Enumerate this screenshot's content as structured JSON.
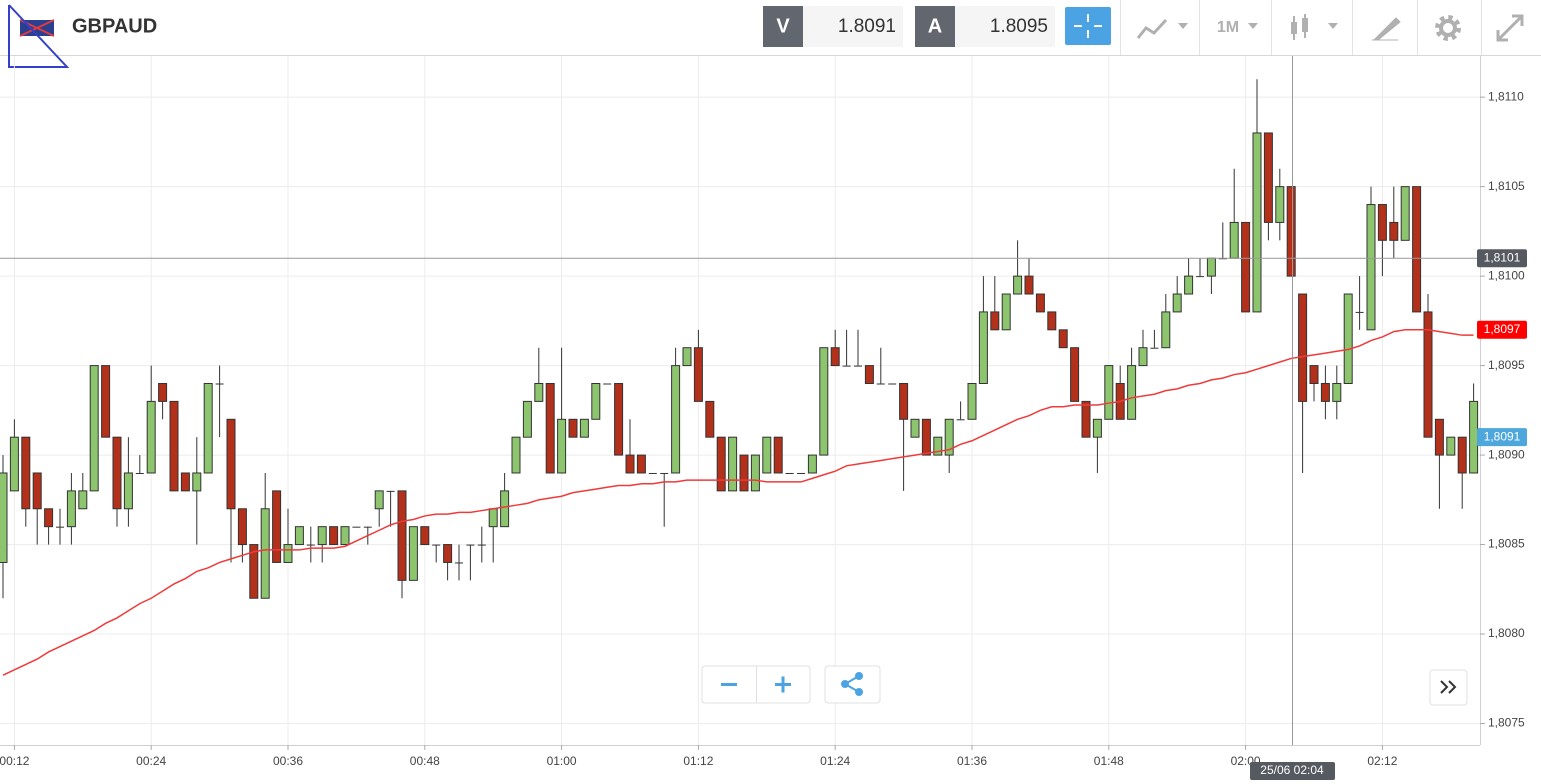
{
  "header": {
    "symbol": "GBPAUD",
    "bid_letter": "V",
    "bid": "1.8091",
    "ask_letter": "A",
    "ask": "1.8095",
    "timeframe": "1M"
  },
  "chart_data": {
    "type": "candlestick",
    "up_color": "#8cc56e",
    "down_color": "#b3301b",
    "categories": [
      null,
      "00:12",
      null,
      null,
      null,
      null,
      null,
      null,
      null,
      null,
      null,
      null,
      null,
      "00:24",
      null,
      null,
      null,
      null,
      null,
      null,
      null,
      null,
      null,
      null,
      null,
      "00:36",
      null,
      null,
      null,
      null,
      null,
      null,
      null,
      null,
      null,
      null,
      null,
      "00:48",
      null,
      null,
      null,
      null,
      null,
      null,
      null,
      null,
      null,
      null,
      null,
      "01:00",
      null,
      null,
      null,
      null,
      null,
      null,
      null,
      null,
      null,
      null,
      null,
      "01:12",
      null,
      null,
      null,
      null,
      null,
      null,
      null,
      null,
      null,
      null,
      null,
      "01:24",
      null,
      null,
      null,
      null,
      null,
      null,
      null,
      null,
      null,
      null,
      null,
      "01:36",
      null,
      null,
      null,
      null,
      null,
      null,
      null,
      null,
      null,
      null,
      null,
      "01:48",
      null,
      null,
      null,
      null,
      null,
      null,
      null,
      null,
      null,
      null,
      null,
      "02:00",
      null,
      null,
      null,
      null,
      null,
      null,
      null,
      null,
      null,
      null,
      null,
      "02:12",
      null,
      null,
      null,
      null,
      null,
      null,
      null,
      null
    ],
    "open": [
      1.8084,
      1.8088,
      1.8091,
      1.8089,
      1.8087,
      1.8086,
      1.8086,
      1.8087,
      1.8088,
      1.8095,
      1.8091,
      1.8087,
      1.8089,
      1.8089,
      1.8094,
      1.8093,
      1.8089,
      1.8088,
      1.8089,
      1.8094,
      1.8092,
      1.8087,
      1.8085,
      1.8082,
      1.8088,
      1.8084,
      1.8085,
      1.8085,
      1.8085,
      1.8086,
      1.8085,
      1.8086,
      1.8086,
      1.8087,
      1.8088,
      1.8088,
      1.8083,
      1.8086,
      1.8085,
      1.8085,
      1.8084,
      1.8085,
      1.8085,
      1.8086,
      1.8086,
      1.8089,
      1.8091,
      1.8093,
      1.8094,
      1.8089,
      1.8092,
      1.8091,
      1.8092,
      1.8094,
      1.8094,
      1.809,
      1.809,
      1.8089,
      1.8089,
      1.8089,
      1.8095,
      1.8096,
      1.8093,
      1.8091,
      1.8088,
      1.809,
      1.8088,
      1.8089,
      1.8091,
      1.8089,
      1.8089,
      1.8089,
      1.809,
      1.8096,
      1.8095,
      1.8095,
      1.8095,
      1.8094,
      1.8094,
      1.8094,
      1.8091,
      1.8092,
      1.809,
      1.809,
      1.8092,
      1.8092,
      1.8094,
      1.8098,
      1.8097,
      1.8099,
      1.81,
      1.8099,
      1.8098,
      1.8097,
      1.8096,
      1.8093,
      1.8091,
      1.8092,
      1.8094,
      1.8092,
      1.8095,
      1.8096,
      1.8096,
      1.8098,
      1.8099,
      1.81,
      1.81,
      1.8101,
      1.8101,
      1.8103,
      1.8098,
      1.8108,
      1.8103,
      1.8105,
      1.8099,
      1.8095,
      1.8094,
      1.8093,
      1.8094,
      1.8098,
      1.8097,
      1.8104,
      1.8103,
      1.8102,
      1.8105,
      1.8098,
      1.8092,
      1.809,
      1.8091,
      1.8089
    ],
    "high": [
      1.809,
      1.8092,
      1.8091,
      1.8089,
      1.8087,
      1.8087,
      1.8089,
      1.8089,
      1.8095,
      1.8095,
      1.8091,
      1.8091,
      1.809,
      1.8095,
      1.8094,
      1.8093,
      1.8089,
      1.8091,
      1.8094,
      1.8095,
      1.8092,
      1.8087,
      1.8085,
      1.8089,
      1.8088,
      1.8087,
      1.8086,
      1.8086,
      1.8086,
      1.8086,
      1.8086,
      1.8086,
      1.8086,
      1.8088,
      1.8088,
      1.8088,
      1.8086,
      1.8086,
      1.8085,
      1.8085,
      1.8085,
      1.8085,
      1.8086,
      1.8087,
      1.8089,
      1.8091,
      1.8093,
      1.8096,
      1.8094,
      1.8096,
      1.8092,
      1.8092,
      1.8094,
      1.8094,
      1.8094,
      1.8092,
      1.809,
      1.8089,
      1.8089,
      1.8096,
      1.8096,
      1.8097,
      1.8093,
      1.8091,
      1.8091,
      1.809,
      1.809,
      1.8091,
      1.8091,
      1.8089,
      1.8089,
      1.809,
      1.8096,
      1.8097,
      1.8097,
      1.8097,
      1.8095,
      1.8096,
      1.8094,
      1.8094,
      1.8092,
      1.8092,
      1.8091,
      1.8092,
      1.8093,
      1.8094,
      1.81,
      1.81,
      1.8099,
      1.8102,
      1.8101,
      1.8099,
      1.8098,
      1.8097,
      1.8096,
      1.8093,
      1.8092,
      1.8095,
      1.8095,
      1.8096,
      1.8097,
      1.8097,
      1.8099,
      1.81,
      1.8101,
      1.8101,
      1.8101,
      1.8103,
      1.8106,
      1.8103,
      1.8111,
      1.8108,
      1.8106,
      1.8105,
      1.8099,
      1.8095,
      1.8095,
      1.8095,
      1.8099,
      1.81,
      1.8105,
      1.8104,
      1.8105,
      1.8105,
      1.8105,
      1.8099,
      1.8092,
      1.8091,
      1.8091,
      1.8094
    ],
    "low": [
      1.8082,
      1.8088,
      1.8086,
      1.8085,
      1.8085,
      1.8085,
      1.8085,
      1.8087,
      1.8088,
      1.8091,
      1.8086,
      1.8086,
      1.8089,
      1.8089,
      1.8092,
      1.8088,
      1.8088,
      1.8085,
      1.8089,
      1.8091,
      1.8084,
      1.8084,
      1.8082,
      1.8082,
      1.8084,
      1.8084,
      1.8085,
      1.8084,
      1.8084,
      1.8085,
      1.8085,
      1.8086,
      1.8085,
      1.8086,
      1.8086,
      1.8082,
      1.8083,
      1.8085,
      1.8084,
      1.8083,
      1.8083,
      1.8083,
      1.8084,
      1.8084,
      1.8086,
      1.8089,
      1.8091,
      1.8093,
      1.8089,
      1.8089,
      1.8091,
      1.8091,
      1.8092,
      1.8094,
      1.809,
      1.8089,
      1.8089,
      1.8089,
      1.8086,
      1.8089,
      1.8095,
      1.8093,
      1.8091,
      1.8088,
      1.8088,
      1.8088,
      1.8088,
      1.8089,
      1.8089,
      1.8089,
      1.8089,
      1.8089,
      1.809,
      1.8095,
      1.8095,
      1.8095,
      1.8094,
      1.8094,
      1.8094,
      1.8088,
      1.8091,
      1.809,
      1.809,
      1.8089,
      1.8092,
      1.8092,
      1.8094,
      1.8097,
      1.8097,
      1.8099,
      1.8099,
      1.8098,
      1.8097,
      1.8096,
      1.8093,
      1.8091,
      1.8089,
      1.8092,
      1.8092,
      1.8092,
      1.8095,
      1.8096,
      1.8096,
      1.8098,
      1.8099,
      1.81,
      1.8099,
      1.8101,
      1.8101,
      1.8098,
      1.8098,
      1.8102,
      1.8102,
      1.81,
      1.8089,
      1.8093,
      1.8092,
      1.8092,
      1.8094,
      1.8097,
      1.8097,
      1.81,
      1.8101,
      1.8102,
      1.8098,
      1.8091,
      1.8087,
      1.809,
      1.8087,
      1.8089
    ],
    "close": [
      1.8089,
      1.8091,
      1.8087,
      1.8087,
      1.8086,
      1.8086,
      1.8088,
      1.8088,
      1.8095,
      1.8091,
      1.8087,
      1.8089,
      1.8089,
      1.8093,
      1.8093,
      1.8088,
      1.8088,
      1.8089,
      1.8094,
      1.8094,
      1.8087,
      1.8085,
      1.8082,
      1.8087,
      1.8084,
      1.8085,
      1.8086,
      1.8085,
      1.8086,
      1.8085,
      1.8086,
      1.8086,
      1.8086,
      1.8088,
      1.8088,
      1.8083,
      1.8086,
      1.8085,
      1.8085,
      1.8084,
      1.8084,
      1.8085,
      1.8085,
      1.8087,
      1.8088,
      1.8091,
      1.8093,
      1.8094,
      1.8089,
      1.8092,
      1.8091,
      1.8092,
      1.8094,
      1.8094,
      1.809,
      1.8089,
      1.8089,
      1.8089,
      1.8089,
      1.8095,
      1.8096,
      1.8093,
      1.8091,
      1.8088,
      1.8091,
      1.8088,
      1.809,
      1.8091,
      1.8089,
      1.8089,
      1.8089,
      1.809,
      1.8096,
      1.8095,
      1.8095,
      1.8095,
      1.8094,
      1.8094,
      1.8094,
      1.8092,
      1.8092,
      1.809,
      1.8091,
      1.8092,
      1.8092,
      1.8094,
      1.8098,
      1.8097,
      1.8099,
      1.81,
      1.8099,
      1.8098,
      1.8097,
      1.8096,
      1.8093,
      1.8091,
      1.8092,
      1.8095,
      1.8092,
      1.8095,
      1.8096,
      1.8096,
      1.8098,
      1.8099,
      1.81,
      1.81,
      1.8101,
      1.8101,
      1.8103,
      1.8098,
      1.8108,
      1.8103,
      1.8105,
      1.81,
      1.8093,
      1.8094,
      1.8093,
      1.8094,
      1.8099,
      1.8098,
      1.8104,
      1.8102,
      1.8102,
      1.8105,
      1.8098,
      1.8091,
      1.809,
      1.8091,
      1.8089,
      1.8093
    ],
    "ma": {
      "color": "#f03a3a",
      "values": [
        1.80777,
        1.8078,
        1.80783,
        1.80786,
        1.8079,
        1.80793,
        1.80796,
        1.80799,
        1.80802,
        1.80806,
        1.80809,
        1.80813,
        1.80817,
        1.8082,
        1.80824,
        1.80828,
        1.80831,
        1.80835,
        1.80837,
        1.8084,
        1.80842,
        1.80844,
        1.80846,
        1.80847,
        1.80847,
        1.80847,
        1.80847,
        1.80848,
        1.80848,
        1.80848,
        1.80849,
        1.80852,
        1.80855,
        1.80858,
        1.80861,
        1.80863,
        1.80864,
        1.80866,
        1.80867,
        1.80867,
        1.80868,
        1.80868,
        1.80869,
        1.8087,
        1.80871,
        1.80872,
        1.80873,
        1.80875,
        1.80876,
        1.80877,
        1.80879,
        1.8088,
        1.80881,
        1.80882,
        1.80883,
        1.80883,
        1.80884,
        1.80884,
        1.80885,
        1.80885,
        1.80886,
        1.80886,
        1.80886,
        1.80886,
        1.80886,
        1.80886,
        1.80886,
        1.80885,
        1.80885,
        1.80885,
        1.80885,
        1.80887,
        1.80889,
        1.80891,
        1.80894,
        1.80895,
        1.80896,
        1.80897,
        1.80898,
        1.80899,
        1.809,
        1.80901,
        1.80902,
        1.80903,
        1.80906,
        1.80908,
        1.80911,
        1.80914,
        1.80917,
        1.8092,
        1.80922,
        1.80925,
        1.80927,
        1.80927,
        1.80928,
        1.80928,
        1.80928,
        1.80929,
        1.8093,
        1.80932,
        1.80933,
        1.80934,
        1.80936,
        1.80937,
        1.80939,
        1.8094,
        1.80942,
        1.80943,
        1.80945,
        1.80946,
        1.80948,
        1.8095,
        1.80952,
        1.80954,
        1.80955,
        1.80956,
        1.80957,
        1.80958,
        1.80959,
        1.80961,
        1.80964,
        1.80966,
        1.80969,
        1.8097,
        1.8097,
        1.8097,
        1.80969,
        1.80968,
        1.80967,
        1.80967
      ]
    },
    "ylim": [
      1.80738,
      1.81123
    ],
    "yticks": [
      {
        "value": 1.8075,
        "label": "1,8075"
      },
      {
        "value": 1.808,
        "label": "1,8080"
      },
      {
        "value": 1.8085,
        "label": "1,8085"
      },
      {
        "value": 1.809,
        "label": "1,8090"
      },
      {
        "value": 1.8095,
        "label": "1,8095"
      },
      {
        "value": 1.81,
        "label": "1,8100"
      },
      {
        "value": 1.8105,
        "label": "1,8105"
      },
      {
        "value": 1.811,
        "label": "1,8110"
      }
    ],
    "grid": true,
    "crosshair": {
      "y": 1.8101,
      "y_label": "1,8101",
      "x_label": "25/06 02:04",
      "color": "#555a60"
    },
    "price_tags": [
      {
        "value": 1.8097,
        "label": "1,8097",
        "color": "#ff0000"
      },
      {
        "value": 1.8091,
        "label": "1,8091",
        "color": "#4da6dc"
      }
    ]
  }
}
